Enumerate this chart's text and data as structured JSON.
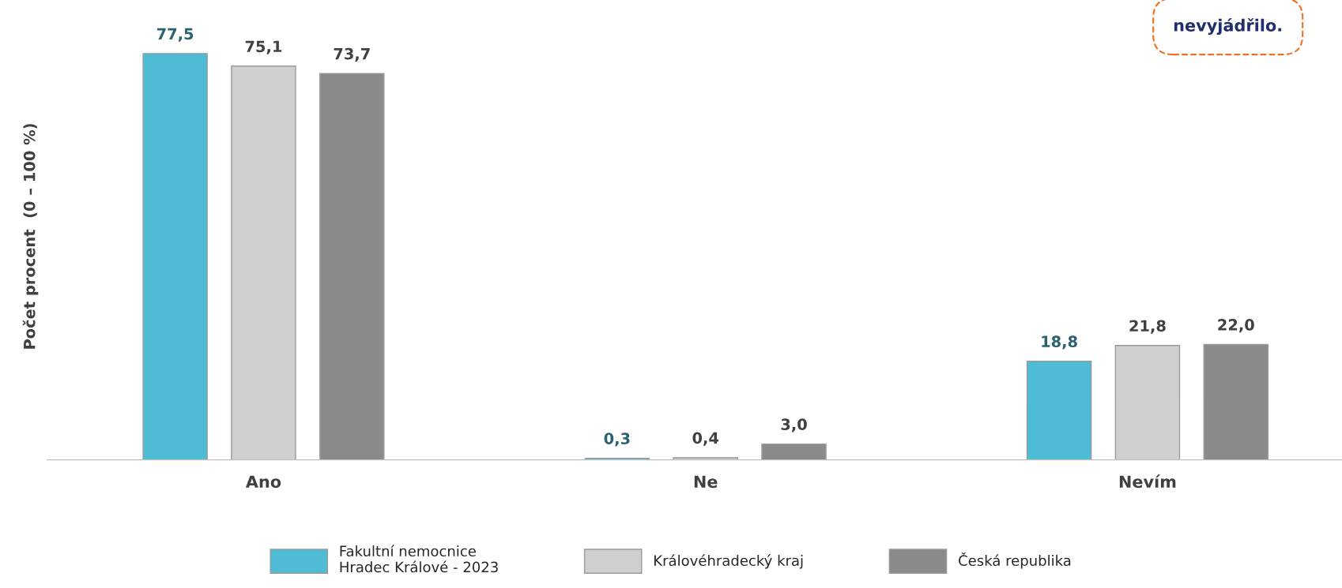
{
  "chart_data": {
    "type": "bar",
    "ylabel": "Počet procent  (0 – 100 %)",
    "categories": [
      "Ano",
      "Ne",
      "Nevím"
    ],
    "series": [
      {
        "name": "Fakultní nemocnice\nHradec Králové - 2023",
        "color": "#4fbcd6",
        "values": [
          77.5,
          0.3,
          18.8
        ],
        "value_labels": [
          "77,5",
          "0,3",
          "18,8"
        ]
      },
      {
        "name": "Královéhradecký kraj",
        "color": "#cfcfcf",
        "values": [
          75.1,
          0.4,
          21.8
        ],
        "value_labels": [
          "75,1",
          "0,4",
          "21,8"
        ]
      },
      {
        "name": "Česká republika",
        "color": "#8a8a8a",
        "values": [
          73.7,
          3.0,
          22.0
        ],
        "value_labels": [
          "73,7",
          "3,0",
          "22,0"
        ]
      }
    ],
    "annotations": [
      "nevyjádřilo."
    ],
    "legend": "bottom",
    "tick_labels": "x",
    "grid": false
  }
}
